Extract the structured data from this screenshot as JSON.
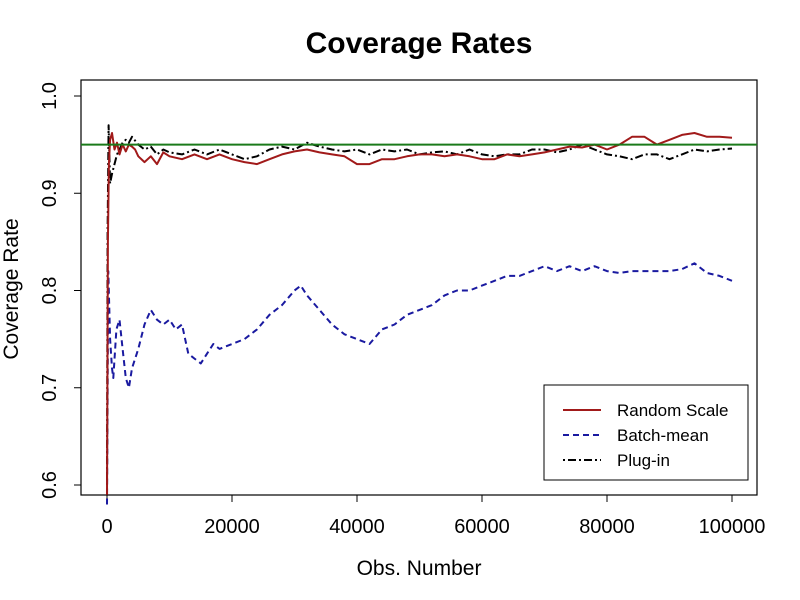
{
  "chart_data": {
    "type": "line",
    "title": "Coverage Rates",
    "xlabel": "Obs. Number",
    "ylabel": "Coverage Rate",
    "xlim": [
      0,
      100000
    ],
    "ylim": [
      0.58,
      1.02
    ],
    "xticks": [
      0,
      20000,
      40000,
      60000,
      80000,
      100000
    ],
    "xtick_labels": [
      "0",
      "20000",
      "40000",
      "60000",
      "80000",
      "100000"
    ],
    "yticks": [
      0.6,
      0.7,
      0.8,
      0.9,
      1.0
    ],
    "ytick_labels": [
      "0.6",
      "0.7",
      "0.8",
      "0.9",
      "1.0"
    ],
    "grid": false,
    "legend_position": "bottom-right",
    "reference_line": {
      "y": 0.95,
      "color": "#1a7a1a"
    },
    "series": [
      {
        "name": "Random Scale",
        "color": "#a11a1a",
        "style": "solid",
        "points": [
          [
            0,
            0.59
          ],
          [
            150,
            0.85
          ],
          [
            300,
            0.93
          ],
          [
            500,
            0.955
          ],
          [
            800,
            0.962
          ],
          [
            1200,
            0.945
          ],
          [
            1600,
            0.952
          ],
          [
            2000,
            0.94
          ],
          [
            2500,
            0.95
          ],
          [
            3000,
            0.943
          ],
          [
            3500,
            0.95
          ],
          [
            4000,
            0.948
          ],
          [
            4500,
            0.945
          ],
          [
            5000,
            0.938
          ],
          [
            6000,
            0.932
          ],
          [
            7000,
            0.938
          ],
          [
            8000,
            0.93
          ],
          [
            9000,
            0.942
          ],
          [
            10000,
            0.938
          ],
          [
            12000,
            0.935
          ],
          [
            14000,
            0.94
          ],
          [
            16000,
            0.935
          ],
          [
            18000,
            0.94
          ],
          [
            20000,
            0.935
          ],
          [
            22000,
            0.932
          ],
          [
            24000,
            0.93
          ],
          [
            26000,
            0.935
          ],
          [
            28000,
            0.94
          ],
          [
            30000,
            0.943
          ],
          [
            32000,
            0.945
          ],
          [
            34000,
            0.942
          ],
          [
            36000,
            0.94
          ],
          [
            38000,
            0.938
          ],
          [
            40000,
            0.93
          ],
          [
            42000,
            0.93
          ],
          [
            44000,
            0.935
          ],
          [
            46000,
            0.935
          ],
          [
            48000,
            0.938
          ],
          [
            50000,
            0.94
          ],
          [
            52000,
            0.94
          ],
          [
            54000,
            0.938
          ],
          [
            56000,
            0.94
          ],
          [
            58000,
            0.938
          ],
          [
            60000,
            0.935
          ],
          [
            62000,
            0.935
          ],
          [
            64000,
            0.94
          ],
          [
            66000,
            0.938
          ],
          [
            68000,
            0.94
          ],
          [
            70000,
            0.942
          ],
          [
            72000,
            0.945
          ],
          [
            74000,
            0.948
          ],
          [
            76000,
            0.947
          ],
          [
            78000,
            0.95
          ],
          [
            80000,
            0.945
          ],
          [
            82000,
            0.95
          ],
          [
            84000,
            0.958
          ],
          [
            86000,
            0.958
          ],
          [
            88000,
            0.95
          ],
          [
            90000,
            0.955
          ],
          [
            92000,
            0.96
          ],
          [
            94000,
            0.962
          ],
          [
            96000,
            0.958
          ],
          [
            98000,
            0.958
          ],
          [
            100000,
            0.957
          ]
        ]
      },
      {
        "name": "Batch-mean",
        "color": "#1a1aa0",
        "style": "dashed",
        "points": [
          [
            0,
            0.58
          ],
          [
            200,
            0.82
          ],
          [
            500,
            0.75
          ],
          [
            800,
            0.72
          ],
          [
            1000,
            0.71
          ],
          [
            1500,
            0.76
          ],
          [
            2000,
            0.77
          ],
          [
            2500,
            0.74
          ],
          [
            3000,
            0.71
          ],
          [
            3500,
            0.7
          ],
          [
            4000,
            0.72
          ],
          [
            5000,
            0.74
          ],
          [
            6000,
            0.765
          ],
          [
            7000,
            0.78
          ],
          [
            8000,
            0.77
          ],
          [
            9000,
            0.765
          ],
          [
            10000,
            0.77
          ],
          [
            11000,
            0.76
          ],
          [
            12000,
            0.765
          ],
          [
            13000,
            0.735
          ],
          [
            14000,
            0.73
          ],
          [
            15000,
            0.725
          ],
          [
            16000,
            0.735
          ],
          [
            17000,
            0.745
          ],
          [
            18000,
            0.74
          ],
          [
            20000,
            0.745
          ],
          [
            22000,
            0.75
          ],
          [
            24000,
            0.76
          ],
          [
            26000,
            0.775
          ],
          [
            28000,
            0.785
          ],
          [
            30000,
            0.8
          ],
          [
            31000,
            0.805
          ],
          [
            32000,
            0.795
          ],
          [
            34000,
            0.78
          ],
          [
            36000,
            0.765
          ],
          [
            38000,
            0.755
          ],
          [
            40000,
            0.75
          ],
          [
            42000,
            0.745
          ],
          [
            44000,
            0.76
          ],
          [
            46000,
            0.765
          ],
          [
            48000,
            0.775
          ],
          [
            50000,
            0.78
          ],
          [
            52000,
            0.785
          ],
          [
            54000,
            0.795
          ],
          [
            56000,
            0.8
          ],
          [
            58000,
            0.8
          ],
          [
            60000,
            0.805
          ],
          [
            62000,
            0.81
          ],
          [
            64000,
            0.815
          ],
          [
            66000,
            0.815
          ],
          [
            68000,
            0.82
          ],
          [
            70000,
            0.825
          ],
          [
            72000,
            0.82
          ],
          [
            74000,
            0.825
          ],
          [
            76000,
            0.82
          ],
          [
            78000,
            0.825
          ],
          [
            80000,
            0.82
          ],
          [
            82000,
            0.818
          ],
          [
            84000,
            0.82
          ],
          [
            86000,
            0.82
          ],
          [
            88000,
            0.82
          ],
          [
            90000,
            0.82
          ],
          [
            92000,
            0.822
          ],
          [
            94000,
            0.828
          ],
          [
            96000,
            0.818
          ],
          [
            98000,
            0.815
          ],
          [
            100000,
            0.81
          ]
        ]
      },
      {
        "name": "Plug-in",
        "color": "#000000",
        "style": "dotdash",
        "points": [
          [
            0,
            0.6
          ],
          [
            100,
            0.86
          ],
          [
            250,
            0.97
          ],
          [
            500,
            0.91
          ],
          [
            800,
            0.92
          ],
          [
            1200,
            0.93
          ],
          [
            1600,
            0.94
          ],
          [
            2000,
            0.945
          ],
          [
            2500,
            0.952
          ],
          [
            3000,
            0.955
          ],
          [
            3500,
            0.952
          ],
          [
            4000,
            0.958
          ],
          [
            5000,
            0.95
          ],
          [
            6000,
            0.945
          ],
          [
            7000,
            0.948
          ],
          [
            8000,
            0.94
          ],
          [
            9000,
            0.945
          ],
          [
            10000,
            0.942
          ],
          [
            12000,
            0.94
          ],
          [
            14000,
            0.945
          ],
          [
            16000,
            0.94
          ],
          [
            18000,
            0.945
          ],
          [
            20000,
            0.94
          ],
          [
            22000,
            0.935
          ],
          [
            24000,
            0.938
          ],
          [
            26000,
            0.945
          ],
          [
            28000,
            0.948
          ],
          [
            30000,
            0.945
          ],
          [
            32000,
            0.952
          ],
          [
            34000,
            0.948
          ],
          [
            36000,
            0.945
          ],
          [
            38000,
            0.943
          ],
          [
            40000,
            0.945
          ],
          [
            42000,
            0.94
          ],
          [
            44000,
            0.945
          ],
          [
            46000,
            0.943
          ],
          [
            48000,
            0.945
          ],
          [
            50000,
            0.94
          ],
          [
            52000,
            0.942
          ],
          [
            54000,
            0.943
          ],
          [
            56000,
            0.94
          ],
          [
            58000,
            0.945
          ],
          [
            60000,
            0.94
          ],
          [
            62000,
            0.938
          ],
          [
            64000,
            0.94
          ],
          [
            66000,
            0.94
          ],
          [
            68000,
            0.945
          ],
          [
            70000,
            0.945
          ],
          [
            72000,
            0.942
          ],
          [
            74000,
            0.945
          ],
          [
            76000,
            0.95
          ],
          [
            78000,
            0.945
          ],
          [
            80000,
            0.94
          ],
          [
            82000,
            0.938
          ],
          [
            84000,
            0.935
          ],
          [
            86000,
            0.94
          ],
          [
            88000,
            0.94
          ],
          [
            90000,
            0.935
          ],
          [
            92000,
            0.94
          ],
          [
            94000,
            0.945
          ],
          [
            96000,
            0.943
          ],
          [
            98000,
            0.945
          ],
          [
            100000,
            0.946
          ]
        ]
      }
    ]
  }
}
